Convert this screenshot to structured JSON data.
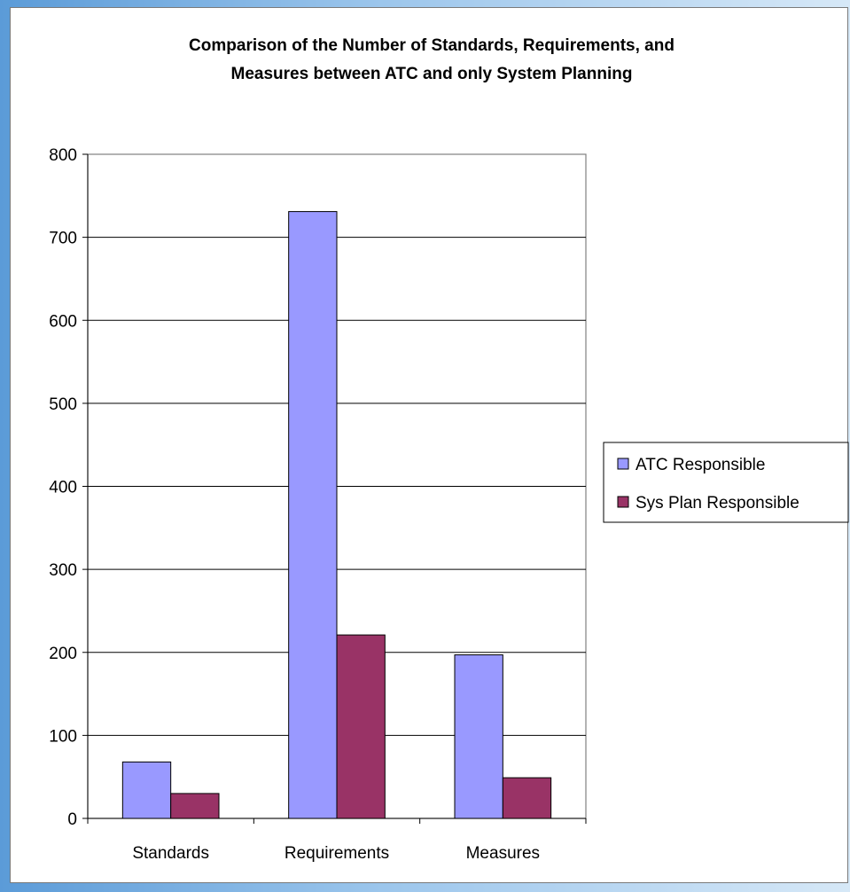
{
  "chart_data": {
    "type": "bar",
    "title_lines": [
      "Comparison of the Number of Standards, Requirements, and",
      "Measures between ATC and only System Planning"
    ],
    "xlabel": "",
    "ylabel": "",
    "categories": [
      "Standards",
      "Requirements",
      "Measures"
    ],
    "series": [
      {
        "name": "ATC Responsible",
        "values": [
          68,
          731,
          197
        ],
        "color": "#9999ff"
      },
      {
        "name": "Sys Plan Responsible",
        "values": [
          30,
          221,
          49
        ],
        "color": "#993366"
      }
    ],
    "ylim": [
      0,
      800
    ],
    "y_ticks": [
      "0",
      "100",
      "200",
      "300",
      "400",
      "500",
      "600",
      "700",
      "800"
    ],
    "grid": true,
    "legend_position": "right"
  }
}
